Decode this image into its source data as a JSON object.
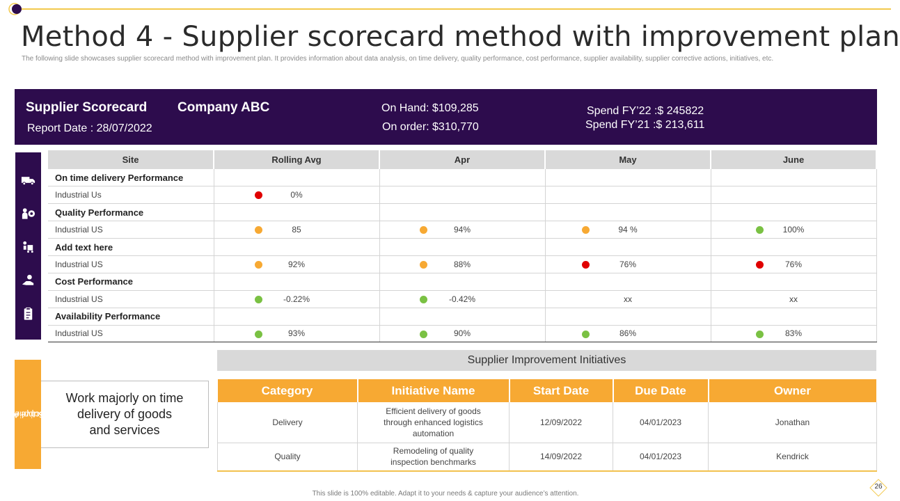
{
  "header": {
    "title": "Method 4 - Supplier scorecard method with improvement plan",
    "subtitle": "The following slide showcases supplier scorecard method with improvement plan. It provides information about data analysis, on time delivery, quality performance, cost performance, supplier availability, supplier corrective actions, initiatives, etc."
  },
  "band": {
    "scorecard": "Supplier Scorecard",
    "company": "Company ABC",
    "report_date": "Report Date : 28/07/2022",
    "on_hand": "On Hand: $109,285",
    "on_order": "On order: $310,770",
    "spend_fy22": "Spend FY’22 :$ 245822",
    "spend_fy21": "Spend FY’21 :$ 213,611"
  },
  "icons": [
    "delivery-truck-icon",
    "quality-gear-icon",
    "hand-cart-icon",
    "cost-hand-icon",
    "clipboard-icon"
  ],
  "colors": {
    "red": "#e00000",
    "amber": "#f7a933",
    "green": "#7ac143",
    "purple": "#2d0c4d",
    "orange": "#f7a933"
  },
  "score_table": {
    "headers": [
      "Site",
      "Rolling Avg",
      "Apr",
      "May",
      "June"
    ],
    "sections": [
      {
        "title": "On time delivery Performance",
        "site": "Industrial Us",
        "cells": [
          {
            "status": "red",
            "value": "0%"
          },
          {
            "status": "",
            "value": ""
          },
          {
            "status": "",
            "value": ""
          },
          {
            "status": "",
            "value": ""
          }
        ]
      },
      {
        "title": "Quality Performance",
        "site": "Industrial US",
        "cells": [
          {
            "status": "amber",
            "value": "85"
          },
          {
            "status": "amber",
            "value": "94%"
          },
          {
            "status": "amber",
            "value": "94 %"
          },
          {
            "status": "green",
            "value": "100%"
          }
        ]
      },
      {
        "title": "Add text here",
        "site": "Industrial US",
        "cells": [
          {
            "status": "amber",
            "value": "92%"
          },
          {
            "status": "amber",
            "value": "88%"
          },
          {
            "status": "red",
            "value": "76%"
          },
          {
            "status": "red",
            "value": "76%"
          }
        ]
      },
      {
        "title": "Cost Performance",
        "site": "Industrial US",
        "cells": [
          {
            "status": "green",
            "value": "-0.22%"
          },
          {
            "status": "green",
            "value": "-0.42%"
          },
          {
            "status": "",
            "value": "xx"
          },
          {
            "status": "",
            "value": "xx"
          }
        ]
      },
      {
        "title": "Availability Performance",
        "site": "Industrial US",
        "cells": [
          {
            "status": "green",
            "value": "93%"
          },
          {
            "status": "green",
            "value": "90%"
          },
          {
            "status": "green",
            "value": "86%"
          },
          {
            "status": "green",
            "value": "83%"
          }
        ]
      }
    ]
  },
  "corrective": {
    "label_line1": "Supplier",
    "label_line2": "Corrective Action",
    "text": "Work majorly on time delivery of goods and services"
  },
  "initiatives": {
    "heading": "Supplier Improvement Initiatives",
    "headers": [
      "Category",
      "Initiative Name",
      "Start Date",
      "Due Date",
      "Owner"
    ],
    "rows": [
      [
        "Delivery",
        "Efficient delivery of goods through enhanced logistics automation",
        "12/09/2022",
        "04/01/2023",
        "Jonathan"
      ],
      [
        "Quality",
        "Remodeling of quality inspection benchmarks",
        "14/09/2022",
        "04/01/2023",
        "Kendrick"
      ]
    ]
  },
  "footer": {
    "note": "This slide is 100% editable. Adapt it to your needs & capture your audience’s attention.",
    "page_number": "26"
  }
}
